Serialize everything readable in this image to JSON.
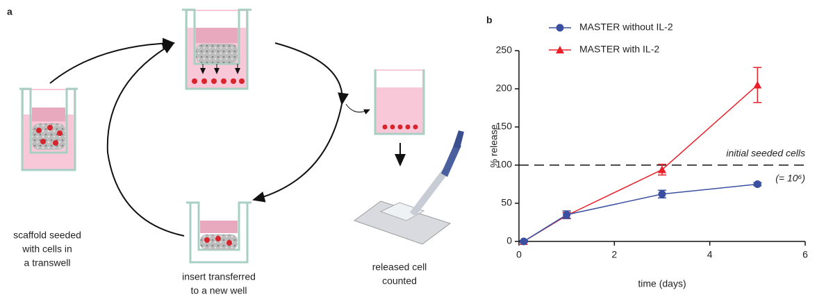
{
  "panel_a": {
    "label": "a",
    "captions": [
      [
        "scaffold seeded",
        "with cells in",
        "a transwell"
      ],
      [
        "insert transferred",
        "to a new well"
      ],
      [
        "released cell",
        "counted"
      ]
    ]
  },
  "chart_data": {
    "type": "line",
    "label": "b",
    "xlabel": "time (days)",
    "ylabel": "% release",
    "xlim": [
      0,
      6
    ],
    "xticks": [
      0,
      2,
      4,
      6
    ],
    "ylim": [
      0,
      250
    ],
    "yticks": [
      0,
      50,
      100,
      150,
      200,
      250
    ],
    "series": [
      {
        "name": "MASTER without IL-2",
        "color": "#3a4fa0",
        "marker": "circle",
        "x": [
          0.1,
          1,
          3,
          5
        ],
        "values": [
          0,
          35,
          62,
          75
        ],
        "errors": [
          1,
          5,
          5,
          2
        ]
      },
      {
        "name": "MASTER with IL-2",
        "color": "#e8202a",
        "marker": "triangle",
        "x": [
          0.1,
          1,
          3,
          5
        ],
        "values": [
          0,
          34,
          94,
          205
        ],
        "errors": [
          1,
          4,
          7,
          23
        ]
      }
    ],
    "reference": {
      "value": 100,
      "label": "initial seeded cells",
      "note": "(= 10⁶)"
    }
  }
}
